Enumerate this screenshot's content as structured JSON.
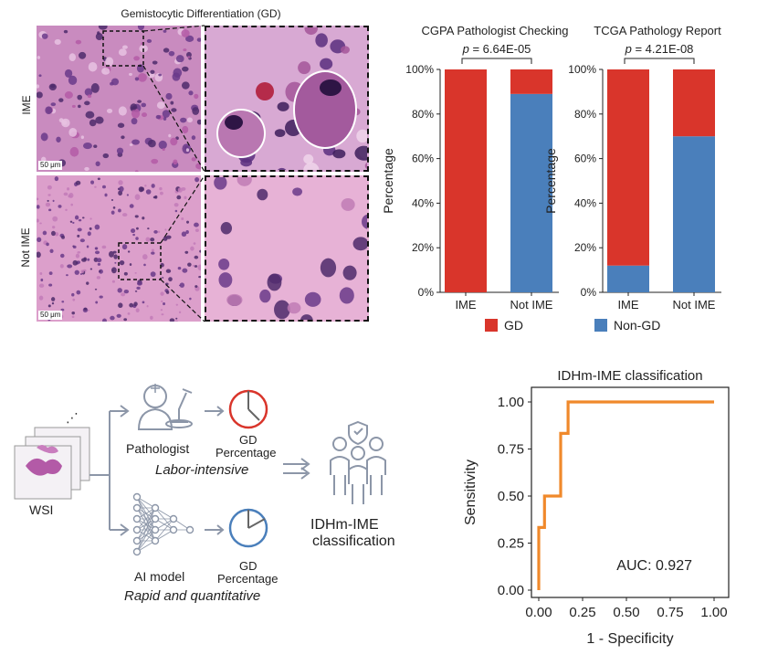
{
  "figure": {
    "micro_title": "Gemistocytic Differentiation (GD)",
    "row_labels": [
      "IME",
      "Not IME"
    ],
    "scale_bar": "50 μm",
    "legend": [
      {
        "label": "GD",
        "color": "#d9352b"
      },
      {
        "label": "Non-GD",
        "color": "#4a7fbb"
      }
    ]
  },
  "workflow": {
    "wsi_label": "WSI",
    "pathologist_label": "Pathologist",
    "pathologist_note": "Labor-intensive",
    "ai_label": "AI model",
    "ai_note": "Rapid and quantitative",
    "gd_percentage_label": "GD\nPercentage",
    "gd_line1": "GD",
    "gd_line2": "Percentage",
    "result_line1": "IDHm-IME",
    "result_line2": "classification",
    "icon_colors": {
      "pathologist_pie": "#d9352b",
      "ai_pie": "#4a7fbb"
    }
  },
  "chart_data": [
    {
      "type": "bar",
      "stacked": true,
      "title": "CGPA Pathologist Checking",
      "annotation": "p = 6.64E-05",
      "p_label": "p",
      "p_value": "= 6.64E-05",
      "categories": [
        "IME",
        "Not IME"
      ],
      "ylabel": "Percentage",
      "ylim": [
        0,
        100
      ],
      "yticks": [
        "0%",
        "20%",
        "40%",
        "60%",
        "80%",
        "100%"
      ],
      "series": [
        {
          "name": "Non-GD",
          "values": [
            0,
            89
          ],
          "color": "#4a7fbb"
        },
        {
          "name": "GD",
          "values": [
            100,
            11
          ],
          "color": "#d9352b"
        }
      ]
    },
    {
      "type": "bar",
      "stacked": true,
      "title": "TCGA Pathology Report",
      "annotation": "p = 4.21E-08",
      "p_label": "p",
      "p_value": "= 4.21E-08",
      "categories": [
        "IME",
        "Not IME"
      ],
      "ylabel": "Percentage",
      "ylim": [
        0,
        100
      ],
      "yticks": [
        "0%",
        "20%",
        "40%",
        "60%",
        "80%",
        "100%"
      ],
      "series": [
        {
          "name": "Non-GD",
          "values": [
            12,
            70
          ],
          "color": "#4a7fbb"
        },
        {
          "name": "GD",
          "values": [
            88,
            30
          ],
          "color": "#d9352b"
        }
      ]
    },
    {
      "type": "line",
      "title": "IDHm-IME classification",
      "xlabel": "1 - Specificity",
      "ylabel": "Sensitivity",
      "xlim": [
        0,
        1
      ],
      "ylim": [
        0,
        1
      ],
      "xticks": [
        "0.00",
        "0.25",
        "0.50",
        "0.75",
        "1.00"
      ],
      "yticks": [
        "0.00",
        "0.25",
        "0.50",
        "0.75",
        "1.00"
      ],
      "annotation": "AUC: 0.927",
      "series": [
        {
          "color": "#f0892b",
          "x": [
            0.0,
            0.0,
            0.033,
            0.033,
            0.067,
            0.067,
            0.125,
            0.125,
            0.167,
            0.167,
            1.0
          ],
          "y": [
            0.0,
            0.333,
            0.333,
            0.5,
            0.5,
            0.5,
            0.5,
            0.833,
            0.833,
            1.0,
            1.0
          ]
        }
      ]
    }
  ]
}
